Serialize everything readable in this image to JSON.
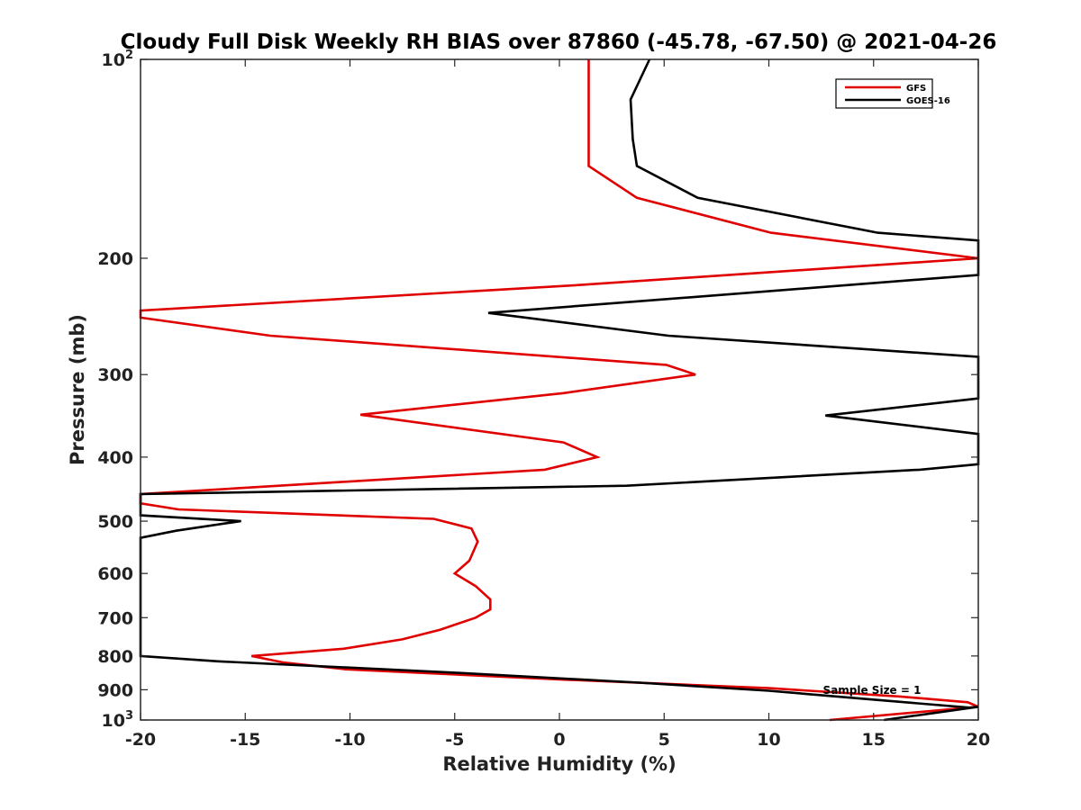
{
  "chart_data": {
    "type": "line",
    "title": "Cloudy Full Disk Weekly RH BIAS over 87860 (-45.78, -67.50) @ 2021-04-26",
    "xlabel": "Relative Humidity (%)",
    "ylabel": "Pressure (mb)",
    "xlim": [
      -20,
      20
    ],
    "ylim": [
      100,
      1000
    ],
    "yscale": "log",
    "y_reversed": true,
    "xticks": [
      -20,
      -15,
      -10,
      -5,
      0,
      5,
      10,
      15,
      20
    ],
    "xtick_labels": [
      "-20",
      "-15",
      "-10",
      "-5",
      "0",
      "5",
      "10",
      "15",
      "20"
    ],
    "yticks": [
      {
        "value": 100,
        "base": "10",
        "exp": "2"
      },
      {
        "value": 200,
        "label": "200"
      },
      {
        "value": 300,
        "label": "300"
      },
      {
        "value": 400,
        "label": "400"
      },
      {
        "value": 500,
        "label": "500"
      },
      {
        "value": 600,
        "label": "600"
      },
      {
        "value": 700,
        "label": "700"
      },
      {
        "value": 800,
        "label": "800"
      },
      {
        "value": 900,
        "label": "900"
      },
      {
        "value": 1000,
        "base": "10",
        "exp": "3"
      }
    ],
    "grid": false,
    "legend_position": "top-right",
    "annotation": "Sample Size = 1",
    "series": [
      {
        "name": "GFS",
        "color": "#e00000",
        "points": [
          {
            "x": 1.4,
            "p": 100
          },
          {
            "x": 1.4,
            "p": 115
          },
          {
            "x": 1.4,
            "p": 132
          },
          {
            "x": 1.4,
            "p": 145
          },
          {
            "x": 3.7,
            "p": 162
          },
          {
            "x": 10.1,
            "p": 183
          },
          {
            "x": 20.0,
            "p": 200
          },
          {
            "x": 0.5,
            "p": 220
          },
          {
            "x": -20.0,
            "p": 240
          },
          {
            "x": -20.0,
            "p": 246
          },
          {
            "x": -13.8,
            "p": 262
          },
          {
            "x": 5.1,
            "p": 290
          },
          {
            "x": 6.5,
            "p": 300
          },
          {
            "x": 0.2,
            "p": 320
          },
          {
            "x": -9.5,
            "p": 345
          },
          {
            "x": 0.2,
            "p": 380
          },
          {
            "x": 1.8,
            "p": 400
          },
          {
            "x": -0.7,
            "p": 418
          },
          {
            "x": -20.0,
            "p": 455
          },
          {
            "x": -20.0,
            "p": 470
          },
          {
            "x": -18.2,
            "p": 480
          },
          {
            "x": -6.0,
            "p": 496
          },
          {
            "x": -4.2,
            "p": 513
          },
          {
            "x": -3.9,
            "p": 537
          },
          {
            "x": -4.3,
            "p": 574
          },
          {
            "x": -5.0,
            "p": 600
          },
          {
            "x": -4.0,
            "p": 627
          },
          {
            "x": -3.3,
            "p": 657
          },
          {
            "x": -3.3,
            "p": 680
          },
          {
            "x": -4.0,
            "p": 700
          },
          {
            "x": -5.7,
            "p": 730
          },
          {
            "x": -7.5,
            "p": 755
          },
          {
            "x": -10.3,
            "p": 780
          },
          {
            "x": -14.7,
            "p": 800
          },
          {
            "x": -13.2,
            "p": 818
          },
          {
            "x": -10.2,
            "p": 838
          },
          {
            "x": 0.0,
            "p": 868
          },
          {
            "x": 10.0,
            "p": 895
          },
          {
            "x": 16.2,
            "p": 921
          },
          {
            "x": 19.5,
            "p": 940
          },
          {
            "x": 20.0,
            "p": 955
          },
          {
            "x": 12.9,
            "p": 1000
          }
        ]
      },
      {
        "name": "GOES-16",
        "color": "#000000",
        "points": [
          {
            "x": 4.3,
            "p": 100
          },
          {
            "x": 3.4,
            "p": 115
          },
          {
            "x": 3.5,
            "p": 132
          },
          {
            "x": 3.7,
            "p": 145
          },
          {
            "x": 6.6,
            "p": 162
          },
          {
            "x": 15.2,
            "p": 183
          },
          {
            "x": 20.0,
            "p": 188
          },
          {
            "x": 20.0,
            "p": 212
          },
          {
            "x": -3.4,
            "p": 242
          },
          {
            "x": 5.2,
            "p": 262
          },
          {
            "x": 20.0,
            "p": 282
          },
          {
            "x": 20.0,
            "p": 326
          },
          {
            "x": 12.7,
            "p": 346
          },
          {
            "x": 20.0,
            "p": 369
          },
          {
            "x": 20.0,
            "p": 410
          },
          {
            "x": 17.2,
            "p": 418
          },
          {
            "x": 3.2,
            "p": 442
          },
          {
            "x": -20.0,
            "p": 455
          },
          {
            "x": -20.0,
            "p": 490
          },
          {
            "x": -15.2,
            "p": 500
          },
          {
            "x": -18.3,
            "p": 517
          },
          {
            "x": -20.0,
            "p": 530
          },
          {
            "x": -20.0,
            "p": 800
          },
          {
            "x": -16.3,
            "p": 815
          },
          {
            "x": -5.0,
            "p": 848
          },
          {
            "x": 3.8,
            "p": 878
          },
          {
            "x": 10.0,
            "p": 903
          },
          {
            "x": 15.1,
            "p": 932
          },
          {
            "x": 19.6,
            "p": 958
          },
          {
            "x": 20.0,
            "p": 955
          },
          {
            "x": 15.5,
            "p": 1000
          }
        ]
      }
    ]
  }
}
